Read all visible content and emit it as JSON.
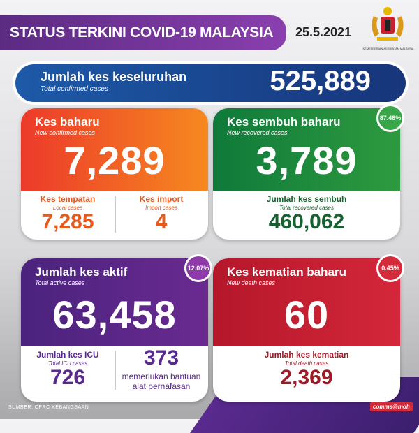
{
  "header": {
    "title": "STATUS TERKINI COVID-19 MALAYSIA",
    "date": "25.5.2021",
    "logo_caption": "KEMENTERIAN KESIHATAN MALAYSIA"
  },
  "total": {
    "label": "Jumlah kes keseluruhan",
    "sublabel": "Total confirmed cases",
    "value": "525,889"
  },
  "new_cases": {
    "label": "Kes baharu",
    "sublabel": "New confirmed cases",
    "value": "7,289",
    "local": {
      "label": "Kes tempatan",
      "sublabel": "Local cases",
      "value": "7,285"
    },
    "import": {
      "label": "Kes import",
      "sublabel": "Import cases",
      "value": "4"
    }
  },
  "recovered": {
    "label": "Kes sembuh baharu",
    "sublabel": "New recovered cases",
    "value": "3,789",
    "percent": "87.48%",
    "total": {
      "label": "Jumlah kes sembuh",
      "sublabel": "Total recovered cases",
      "value": "460,062"
    }
  },
  "active": {
    "label": "Jumlah kes aktif",
    "sublabel": "Total active cases",
    "value": "63,458",
    "percent": "12.07%",
    "icu": {
      "label": "Jumlah kes ICU",
      "sublabel": "Total ICU cases",
      "value": "726"
    },
    "ventilator": {
      "value": "373",
      "label_line1": "memerlukan bantuan",
      "label_line2": "alat pernafasan"
    }
  },
  "deaths": {
    "label": "Kes kematian baharu",
    "sublabel": "New death cases",
    "value": "60",
    "percent": "0.45%",
    "total": {
      "label": "Jumlah kes kematian",
      "sublabel": "Total death cases",
      "value": "2,369"
    }
  },
  "footer": {
    "source": "SUMBER: CPRC KEBANGSAAN",
    "brand": "comms@moh"
  },
  "colors": {
    "orange": "#f26b21",
    "green": "#1f8a3c",
    "purple": "#5a2a8e",
    "red": "#c8202f",
    "blue": "#1d4a98"
  }
}
